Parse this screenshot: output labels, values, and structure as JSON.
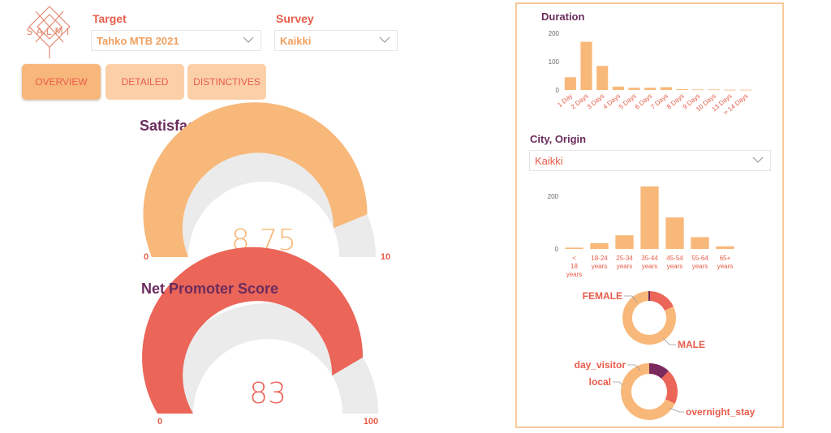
{
  "logo": {
    "text": "SALMI"
  },
  "filters": {
    "target": {
      "label": "Target",
      "value": "Tahko MTB 2021"
    },
    "survey": {
      "label": "Survey",
      "value": "Kaikki"
    },
    "city": {
      "label": "City, Origin",
      "value": "Kaikki"
    }
  },
  "nav": {
    "overview": "OVERVIEW",
    "detailed": "DETAILED",
    "distinctives": "DISTINCTIVES"
  },
  "gauges": {
    "satisfaction": {
      "title": "Satisfaction",
      "value": 8.75,
      "value_label": "8,75",
      "min": 0,
      "max": 10,
      "min_label": "0",
      "max_label": "10",
      "color": "#f8b87a"
    },
    "nps": {
      "title": "Net Promoter Score",
      "value": 83,
      "value_label": "83",
      "min": 0,
      "max": 100,
      "min_label": "0",
      "max_label": "100",
      "color": "#eb6558"
    }
  },
  "chart_data": [
    {
      "type": "bar",
      "title": "Duration",
      "categories": [
        "1 Day",
        "2 Days",
        "3 Days",
        "4 Days",
        "5 Days",
        "6 Days",
        "7 Days",
        "8 Days",
        "9 Days",
        "10 Days",
        "13 Days",
        "> 14 Days"
      ],
      "values": [
        45,
        170,
        85,
        12,
        8,
        8,
        10,
        3,
        2,
        2,
        1,
        1
      ],
      "yticks": [
        0,
        100,
        200
      ],
      "ylim": [
        0,
        200
      ],
      "color": "#f8b87a"
    },
    {
      "type": "bar",
      "categories": [
        "< 18 years",
        "18-24 years",
        "25-34 years",
        "35-44 years",
        "45-54 years",
        "55-64 years",
        "65+ years"
      ],
      "values": [
        5,
        22,
        52,
        238,
        120,
        45,
        10
      ],
      "yticks": [
        0,
        200
      ],
      "ylim": [
        0,
        250
      ],
      "color": "#f8b87a"
    },
    {
      "type": "pie",
      "categories": [
        "FEMALE",
        "MALE"
      ],
      "values": [
        18,
        82
      ],
      "colors": [
        "#eb6558",
        "#f8b87a"
      ],
      "accent": "#6b2c5e"
    },
    {
      "type": "pie",
      "categories": [
        "day_visitor",
        "local",
        "overnight_stay"
      ],
      "values": [
        12,
        20,
        68
      ],
      "colors": [
        "#7b2a5e",
        "#eb6558",
        "#f8b87a"
      ]
    }
  ]
}
